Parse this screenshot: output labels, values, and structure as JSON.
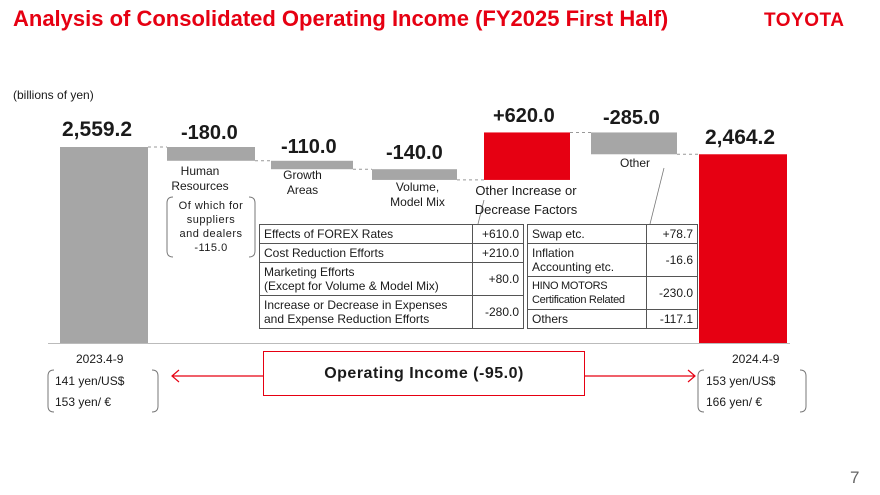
{
  "title": "Analysis of Consolidated Operating Income (FY2025 First Half)",
  "logo": "TOYOTA",
  "unit": "(billions of yen)",
  "page_number": "7",
  "colors": {
    "accent": "#e60012",
    "neutral_bar": "#a6a6a6",
    "connector": "#999999"
  },
  "chart_data": {
    "type": "waterfall",
    "ylabel": "",
    "steps": [
      {
        "key": "start",
        "value": 2559.2,
        "label": "2,559.2",
        "kind": "total"
      },
      {
        "key": "hr",
        "value": -180.0,
        "label": "-180.0",
        "kind": "delta"
      },
      {
        "key": "growth",
        "value": -110.0,
        "label": "-110.0",
        "kind": "delta"
      },
      {
        "key": "volume",
        "value": -140.0,
        "label": "-140.0",
        "kind": "delta"
      },
      {
        "key": "other_factors",
        "value": 620.0,
        "label": "+620.0",
        "kind": "delta"
      },
      {
        "key": "other",
        "value": -285.0,
        "label": "-285.0",
        "kind": "delta"
      },
      {
        "key": "end",
        "value": 2464.2,
        "label": "2,464.2",
        "kind": "total"
      }
    ]
  },
  "descriptions": {
    "hr": "Human\nResources",
    "hr_note": "Of which for\nsuppliers\nand dealers\n-115.0",
    "growth": "Growth\nAreas",
    "volume": "Volume,\nModel Mix",
    "other_factors": "Other Increase or\nDecrease Factors",
    "other": "Other"
  },
  "breakdown_left": [
    {
      "label": "Effects of FOREX Rates",
      "value": "+610.0"
    },
    {
      "label": "Cost Reduction Efforts",
      "value": "+210.0"
    },
    {
      "label": "Marketing Efforts\n(Except for Volume & Model Mix)",
      "value": "+80.0"
    },
    {
      "label": "Increase or Decrease in Expenses\nand Expense Reduction Efforts",
      "value": "-280.0"
    }
  ],
  "breakdown_right": [
    {
      "label": "Swap etc.",
      "value": "+78.7"
    },
    {
      "label": "Inflation\nAccounting etc.",
      "value": "-16.6"
    },
    {
      "label": "HINO MOTORS\nCertification Related",
      "value": "-230.0"
    },
    {
      "label": "Others",
      "value": "-117.1"
    }
  ],
  "period_left": {
    "label": "2023.4-9",
    "fx1": "141 yen/US$",
    "fx2": "153 yen/ €"
  },
  "period_right": {
    "label": "2024.4-9",
    "fx1": "153 yen/US$",
    "fx2": "166 yen/ €"
  },
  "operating_income": "Operating Income (-95.0)"
}
